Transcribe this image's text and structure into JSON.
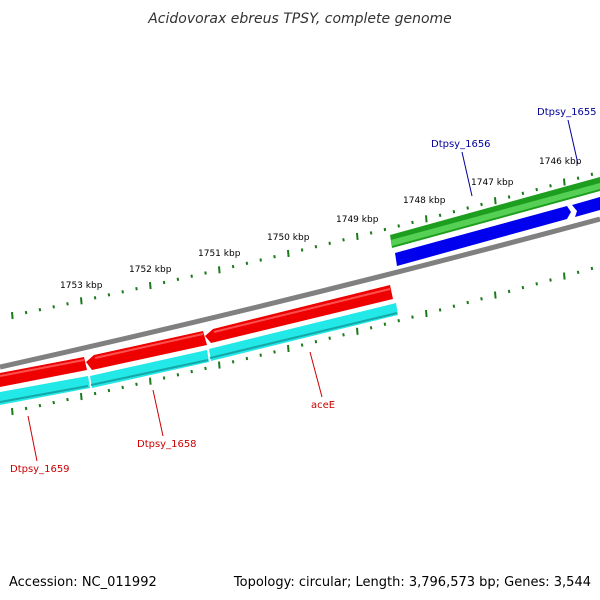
{
  "title": "Acidovorax ebreus TPSY, complete genome",
  "footer": {
    "accession": "Accession: NC_011992",
    "summary": "Topology: circular; Length: 3,796,573 bp; Genes: 3,544"
  },
  "ruler": {
    "labels": [
      "1753 kbp",
      "1752 kbp",
      "1751 kbp",
      "1750 kbp",
      "1749 kbp",
      "1748 kbp",
      "1747 kbp",
      "1746 kbp"
    ]
  },
  "genes": {
    "dtpsy_1659": "Dtpsy_1659",
    "dtpsy_1658": "Dtpsy_1658",
    "acee": "aceE",
    "dtpsy_1656": "Dtpsy_1656",
    "dtpsy_1655": "Dtpsy_1655"
  },
  "colors": {
    "backbone": "#808080",
    "reverse_cds": "#ff0000",
    "reverse_cds_dark": "#c00000",
    "forward_cds": "#1e9e1e",
    "forward_cds_light": "#55d055",
    "blue_track": "#0000ee",
    "cyan_track": "#22e8e8",
    "tick": "#1a7a1a",
    "reverse_label": "#cc0000",
    "forward_label": "#000099"
  }
}
